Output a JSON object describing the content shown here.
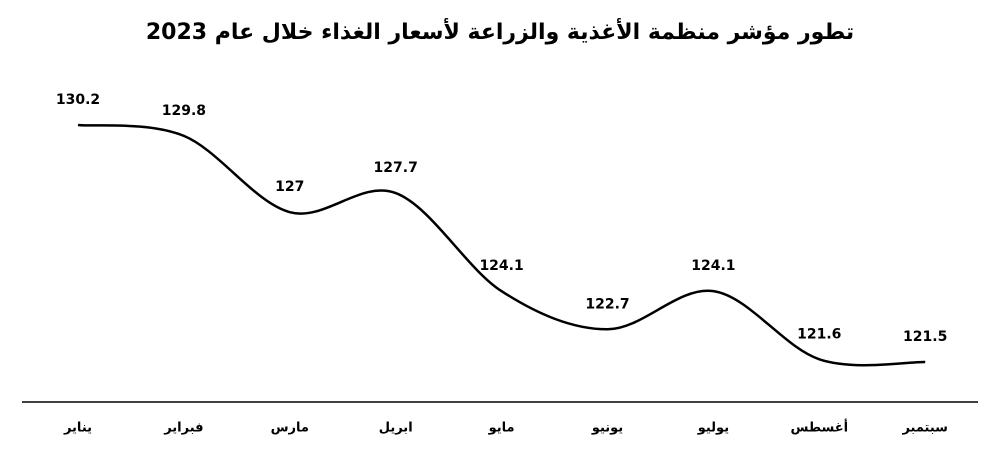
{
  "chart_data": {
    "type": "line",
    "title": "تطور مؤشر منظمة الأغذية والزراعة لأسعار الغذاء خلال عام 2023",
    "categories": [
      "يناير",
      "فبراير",
      "مارس",
      "ابريل",
      "مايو",
      "يونيو",
      "يوليو",
      "أغسطس",
      "سبتمبر"
    ],
    "values": [
      130.2,
      129.8,
      127,
      127.7,
      124.1,
      122.7,
      124.1,
      121.6,
      121.5
    ],
    "color": "#000000"
  }
}
